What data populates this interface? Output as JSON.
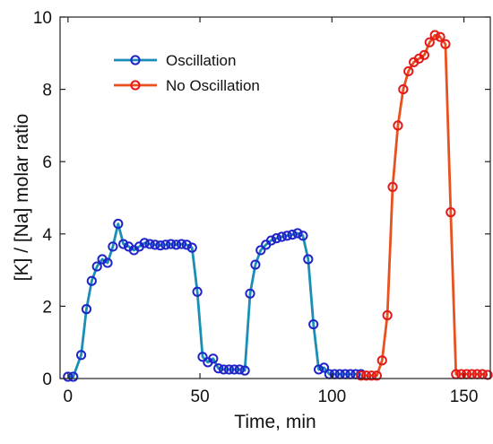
{
  "chart_data": {
    "type": "line",
    "title": "",
    "xlabel": "Time, min",
    "ylabel": "[K] / [Na] molar ratio",
    "xlim": [
      -3,
      160
    ],
    "ylim": [
      0,
      10
    ],
    "xticks": [
      0,
      50,
      100,
      150
    ],
    "yticks": [
      0,
      2,
      4,
      6,
      8,
      10
    ],
    "grid": false,
    "legend_position": "top-left",
    "series": [
      {
        "name": "Oscillation",
        "line_color": "#1a8fb5",
        "marker_color": "#1f24c9",
        "x": [
          0,
          2,
          5,
          7,
          9,
          11,
          13,
          15,
          17,
          19,
          21,
          23,
          25,
          27,
          29,
          31,
          33,
          35,
          37,
          39,
          41,
          43,
          45,
          47,
          49,
          51,
          53,
          55,
          57,
          59,
          61,
          63,
          65,
          67,
          69,
          71,
          73,
          75,
          77,
          79,
          81,
          83,
          85,
          87,
          89,
          91,
          93,
          95,
          97,
          99,
          101,
          103,
          105,
          107,
          109,
          111
        ],
        "y": [
          0.05,
          0.05,
          0.65,
          1.92,
          2.7,
          3.1,
          3.3,
          3.2,
          3.65,
          4.28,
          3.72,
          3.65,
          3.55,
          3.65,
          3.75,
          3.72,
          3.7,
          3.68,
          3.7,
          3.72,
          3.7,
          3.72,
          3.7,
          3.62,
          2.4,
          0.6,
          0.45,
          0.55,
          0.28,
          0.25,
          0.25,
          0.25,
          0.25,
          0.22,
          2.35,
          3.15,
          3.55,
          3.7,
          3.82,
          3.88,
          3.92,
          3.95,
          3.98,
          4.02,
          3.95,
          3.3,
          1.5,
          0.25,
          0.3,
          0.12,
          0.12,
          0.12,
          0.12,
          0.12,
          0.12,
          0.12
        ]
      },
      {
        "name": "No Oscillation",
        "line_color": "#e8521f",
        "marker_color": "#e41a1a",
        "x": [
          111,
          113,
          115,
          117,
          119,
          121,
          123,
          125,
          127,
          129,
          131,
          133,
          135,
          137,
          139,
          141,
          143,
          145,
          147,
          149,
          151,
          153,
          155,
          157,
          159
        ],
        "y": [
          0.08,
          0.08,
          0.08,
          0.08,
          0.5,
          1.75,
          5.3,
          7.0,
          8.0,
          8.5,
          8.75,
          8.85,
          8.95,
          9.3,
          9.5,
          9.45,
          9.25,
          4.6,
          0.12,
          0.12,
          0.12,
          0.12,
          0.12,
          0.12,
          0.1
        ]
      }
    ]
  }
}
